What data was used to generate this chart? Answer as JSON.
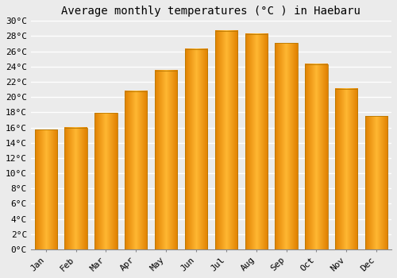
{
  "title": "Average monthly temperatures (°C ) in Haebaru",
  "months": [
    "Jan",
    "Feb",
    "Mar",
    "Apr",
    "May",
    "Jun",
    "Jul",
    "Aug",
    "Sep",
    "Oct",
    "Nov",
    "Dec"
  ],
  "values": [
    15.7,
    16.0,
    17.9,
    20.8,
    23.5,
    26.3,
    28.7,
    28.3,
    27.1,
    24.3,
    21.1,
    17.5
  ],
  "bar_color_light": "#FFB732",
  "bar_color_dark": "#E08000",
  "bar_edge_color": "#B87800",
  "ylim": [
    0,
    30
  ],
  "ytick_step": 2,
  "background_color": "#ebebeb",
  "grid_color": "#ffffff",
  "title_fontsize": 10,
  "tick_label_fontsize": 8,
  "bar_width": 0.75
}
